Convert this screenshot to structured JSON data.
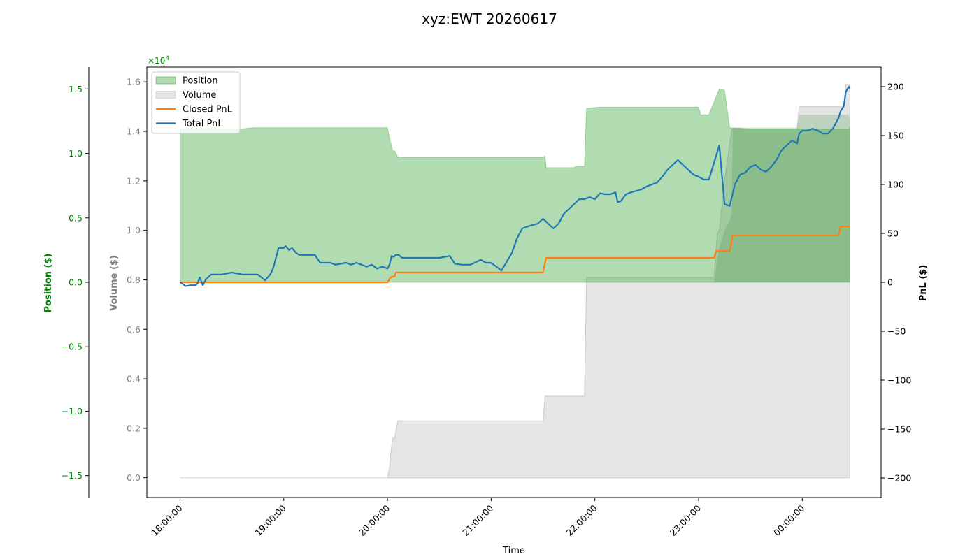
{
  "chart_data": {
    "type": "line",
    "title": "xyz:EWT 20260617",
    "xlabel": "Time",
    "x_ticks": [
      "18:00:00",
      "19:00:00",
      "20:00:00",
      "21:00:00",
      "22:00:00",
      "23:00:00",
      "00:00:00"
    ],
    "axes": {
      "position": {
        "label": "Position ($)",
        "ylim": [
          -1.67,
          1.67
        ],
        "ticks": [
          "−1.5",
          "−1.0",
          "−0.5",
          "0.0",
          "0.5",
          "1.0",
          "1.5"
        ],
        "multiplier_label": "×10",
        "multiplier_exp": "4",
        "color": "#008000"
      },
      "volume": {
        "label": "Volume ($)",
        "ylim": [
          -0.08,
          1.66
        ],
        "ticks": [
          "0.0",
          "0.2",
          "0.4",
          "0.6",
          "0.8",
          "1.0",
          "1.2",
          "1.4",
          "1.6"
        ],
        "color": "#808080"
      },
      "pnl": {
        "label": "PnL ($)",
        "ylim": [
          -220,
          220
        ],
        "ticks": [
          "−200",
          "−150",
          "−100",
          "−50",
          "0",
          "50",
          "100",
          "150",
          "200"
        ],
        "color": "#000000"
      }
    },
    "legend": {
      "placement": "top-left",
      "entries": [
        {
          "label": "Position",
          "kind": "patch",
          "color": "#2ca02c"
        },
        {
          "label": "Volume",
          "kind": "patch",
          "color": "#bfbfbf"
        },
        {
          "label": "Closed PnL",
          "kind": "line",
          "color": "#ff7f0e"
        },
        {
          "label": "Total PnL",
          "kind": "line",
          "color": "#1f77b4"
        }
      ]
    },
    "x_range_hours": [
      -0.32,
      6.76
    ],
    "series": [
      {
        "name": "Position",
        "axis": "position",
        "style": "area",
        "color": "#2ca02c",
        "points": [
          [
            0,
            1.19
          ],
          [
            0.6,
            1.19
          ],
          [
            0.7,
            1.2
          ],
          [
            2.0,
            1.2
          ],
          [
            2.02,
            1.12
          ],
          [
            2.05,
            1.02
          ],
          [
            2.07,
            1.02
          ],
          [
            2.1,
            0.97
          ],
          [
            3.5,
            0.97
          ],
          [
            3.52,
            0.98
          ],
          [
            3.53,
            0.89
          ],
          [
            3.8,
            0.89
          ],
          [
            3.82,
            0.9
          ],
          [
            3.9,
            0.9
          ],
          [
            3.92,
            1.35
          ],
          [
            4.05,
            1.36
          ],
          [
            5.0,
            1.36
          ],
          [
            5.02,
            1.3
          ],
          [
            5.1,
            1.3
          ],
          [
            5.2,
            1.5
          ],
          [
            5.25,
            1.49
          ],
          [
            5.3,
            1.2
          ],
          [
            5.5,
            1.19
          ],
          [
            6.45,
            1.19
          ],
          [
            6.46,
            1.2
          ]
        ]
      },
      {
        "name": "Volume",
        "axis": "volume",
        "style": "area",
        "color": "#bfbfbf",
        "points": [
          [
            0,
            0
          ],
          [
            1.0,
            0
          ],
          [
            2.0,
            0
          ],
          [
            2.02,
            0.04
          ],
          [
            2.03,
            0.09
          ],
          [
            2.05,
            0.16
          ],
          [
            2.07,
            0.16
          ],
          [
            2.1,
            0.23
          ],
          [
            3.5,
            0.23
          ],
          [
            3.52,
            0.33
          ],
          [
            3.9,
            0.33
          ],
          [
            3.92,
            0.81
          ],
          [
            5.15,
            0.81
          ],
          [
            5.18,
            0.99
          ],
          [
            5.2,
            1.0
          ],
          [
            5.25,
            1.2
          ],
          [
            5.32,
            1.41
          ],
          [
            5.5,
            1.41
          ],
          [
            5.95,
            1.41
          ],
          [
            5.97,
            1.5
          ],
          [
            6.4,
            1.5
          ],
          [
            6.42,
            1.59
          ],
          [
            6.46,
            1.59
          ]
        ]
      },
      {
        "name": "Position overlay",
        "axis": "position",
        "style": "overlay",
        "color": "#2ca02c",
        "points": [
          [
            5.15,
            0.0
          ],
          [
            5.18,
            0.18
          ],
          [
            5.2,
            0.27
          ],
          [
            5.25,
            0.4
          ],
          [
            5.3,
            0.48
          ],
          [
            5.32,
            0.53
          ],
          [
            5.33,
            1.2
          ],
          [
            5.95,
            1.2
          ],
          [
            5.97,
            1.3
          ],
          [
            6.45,
            1.3
          ],
          [
            6.46,
            1.24
          ]
        ]
      },
      {
        "name": "Closed PnL",
        "axis": "pnl",
        "style": "line",
        "color": "#ff7f0e",
        "points": [
          [
            0,
            0
          ],
          [
            2.0,
            0
          ],
          [
            2.03,
            5
          ],
          [
            2.05,
            6
          ],
          [
            2.07,
            6
          ],
          [
            2.08,
            10
          ],
          [
            3.5,
            10
          ],
          [
            3.53,
            25
          ],
          [
            5.15,
            25
          ],
          [
            5.17,
            32
          ],
          [
            5.3,
            32
          ],
          [
            5.33,
            48
          ],
          [
            6.35,
            48
          ],
          [
            6.37,
            57
          ],
          [
            6.46,
            57
          ]
        ]
      },
      {
        "name": "Total PnL",
        "axis": "pnl",
        "style": "line",
        "color": "#1f77b4",
        "points": [
          [
            0,
            0
          ],
          [
            0.03,
            -2
          ],
          [
            0.05,
            -4
          ],
          [
            0.1,
            -3
          ],
          [
            0.15,
            -3
          ],
          [
            0.17,
            -1
          ],
          [
            0.19,
            5
          ],
          [
            0.22,
            -3
          ],
          [
            0.25,
            3
          ],
          [
            0.3,
            8
          ],
          [
            0.4,
            8
          ],
          [
            0.5,
            10
          ],
          [
            0.6,
            8
          ],
          [
            0.75,
            8
          ],
          [
            0.82,
            2
          ],
          [
            0.87,
            8
          ],
          [
            0.9,
            15
          ],
          [
            0.95,
            35
          ],
          [
            1.0,
            35
          ],
          [
            1.02,
            37
          ],
          [
            1.05,
            33
          ],
          [
            1.08,
            35
          ],
          [
            1.12,
            30
          ],
          [
            1.15,
            28
          ],
          [
            1.3,
            28
          ],
          [
            1.35,
            20
          ],
          [
            1.45,
            20
          ],
          [
            1.5,
            18
          ],
          [
            1.6,
            20
          ],
          [
            1.65,
            18
          ],
          [
            1.7,
            20
          ],
          [
            1.8,
            16
          ],
          [
            1.85,
            18
          ],
          [
            1.9,
            14
          ],
          [
            1.95,
            16
          ],
          [
            2.0,
            14
          ],
          [
            2.02,
            18
          ],
          [
            2.04,
            27
          ],
          [
            2.06,
            26
          ],
          [
            2.08,
            28
          ],
          [
            2.11,
            28
          ],
          [
            2.14,
            25
          ],
          [
            2.3,
            25
          ],
          [
            2.5,
            25
          ],
          [
            2.6,
            27
          ],
          [
            2.65,
            19
          ],
          [
            2.72,
            18
          ],
          [
            2.8,
            18
          ],
          [
            2.9,
            23
          ],
          [
            2.95,
            20
          ],
          [
            3.0,
            20
          ],
          [
            3.05,
            16
          ],
          [
            3.1,
            12
          ],
          [
            3.2,
            30
          ],
          [
            3.25,
            45
          ],
          [
            3.3,
            55
          ],
          [
            3.35,
            57
          ],
          [
            3.45,
            60
          ],
          [
            3.5,
            65
          ],
          [
            3.55,
            60
          ],
          [
            3.6,
            55
          ],
          [
            3.65,
            60
          ],
          [
            3.7,
            70
          ],
          [
            3.8,
            80
          ],
          [
            3.85,
            85
          ],
          [
            3.9,
            85
          ],
          [
            3.95,
            87
          ],
          [
            4.0,
            85
          ],
          [
            4.05,
            91
          ],
          [
            4.1,
            90
          ],
          [
            4.15,
            90
          ],
          [
            4.2,
            92
          ],
          [
            4.22,
            82
          ],
          [
            4.25,
            83
          ],
          [
            4.3,
            90
          ],
          [
            4.35,
            92
          ],
          [
            4.45,
            95
          ],
          [
            4.5,
            98
          ],
          [
            4.55,
            100
          ],
          [
            4.6,
            102
          ],
          [
            4.65,
            108
          ],
          [
            4.7,
            115
          ],
          [
            4.75,
            120
          ],
          [
            4.8,
            125
          ],
          [
            4.85,
            120
          ],
          [
            4.9,
            115
          ],
          [
            4.95,
            110
          ],
          [
            5.0,
            108
          ],
          [
            5.05,
            105
          ],
          [
            5.1,
            105
          ],
          [
            5.2,
            140
          ],
          [
            5.25,
            80
          ],
          [
            5.3,
            78
          ],
          [
            5.35,
            100
          ],
          [
            5.4,
            110
          ],
          [
            5.45,
            112
          ],
          [
            5.5,
            118
          ],
          [
            5.55,
            120
          ],
          [
            5.6,
            115
          ],
          [
            5.65,
            113
          ],
          [
            5.7,
            118
          ],
          [
            5.75,
            125
          ],
          [
            5.8,
            135
          ],
          [
            5.85,
            140
          ],
          [
            5.9,
            145
          ],
          [
            5.95,
            142
          ],
          [
            5.97,
            152
          ],
          [
            6.0,
            155
          ],
          [
            6.05,
            155
          ],
          [
            6.1,
            157
          ],
          [
            6.15,
            155
          ],
          [
            6.2,
            152
          ],
          [
            6.25,
            152
          ],
          [
            6.3,
            158
          ],
          [
            6.35,
            168
          ],
          [
            6.37,
            175
          ],
          [
            6.4,
            180
          ],
          [
            6.42,
            195
          ],
          [
            6.45,
            200
          ],
          [
            6.46,
            198
          ]
        ]
      }
    ]
  }
}
